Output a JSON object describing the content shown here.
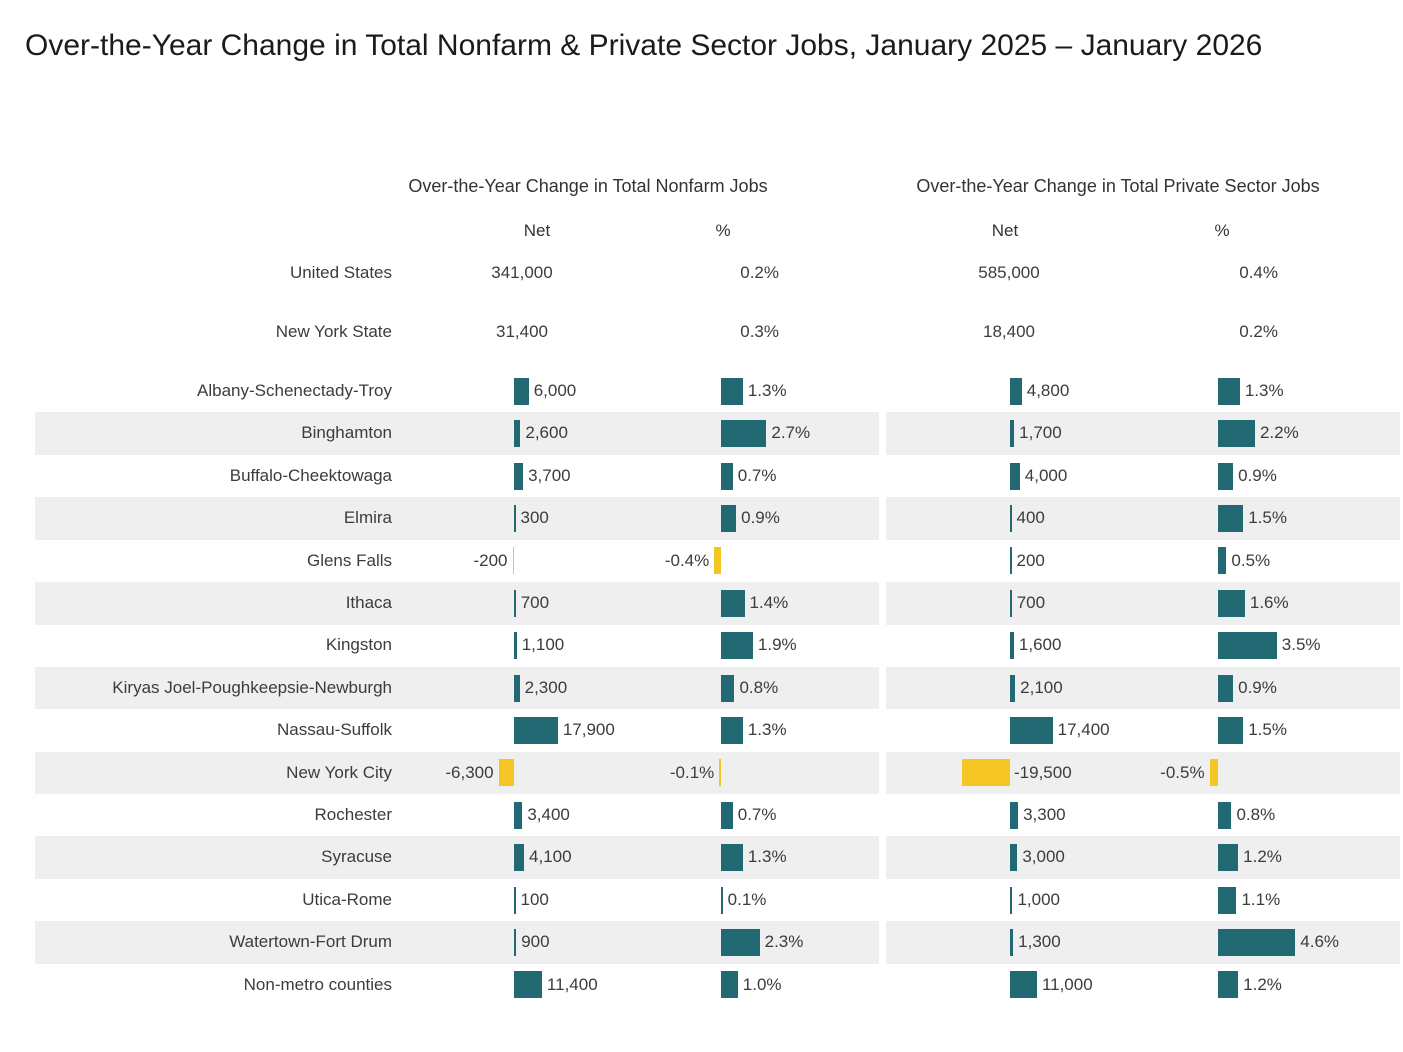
{
  "title": "Over-the-Year Change in Total Nonfarm & Private Sector Jobs, January 2025 – January 2026",
  "colors": {
    "positive_bar": "#236974",
    "negative_bar": "#F5C623",
    "row_stripe": "#EFEFEF",
    "text": "#3C3C3C"
  },
  "chart_data": {
    "type": "bar",
    "orientation": "horizontal",
    "groups": [
      {
        "label": "Over-the-Year Change in Total Nonfarm Jobs",
        "columns": [
          "Net",
          "%"
        ]
      },
      {
        "label": "Over-the-Year Change in Total Private Sector Jobs",
        "columns": [
          "Net",
          "%"
        ]
      }
    ],
    "summary_rows": [
      {
        "label": "United States",
        "nonfarm_net": "341,000",
        "nonfarm_pct": "0.2%",
        "private_net": "585,000",
        "private_pct": "0.4%"
      },
      {
        "label": "New York State",
        "nonfarm_net": "31,400",
        "nonfarm_pct": "0.3%",
        "private_net": "18,400",
        "private_pct": "0.2%"
      }
    ],
    "rows": [
      {
        "label": "Albany-Schenectady-Troy",
        "nonfarm_net": 6000,
        "nonfarm_pct": 1.3,
        "private_net": 4800,
        "private_pct": 1.3
      },
      {
        "label": "Binghamton",
        "nonfarm_net": 2600,
        "nonfarm_pct": 2.7,
        "private_net": 1700,
        "private_pct": 2.2
      },
      {
        "label": "Buffalo-Cheektowaga",
        "nonfarm_net": 3700,
        "nonfarm_pct": 0.7,
        "private_net": 4000,
        "private_pct": 0.9
      },
      {
        "label": "Elmira",
        "nonfarm_net": 300,
        "nonfarm_pct": 0.9,
        "private_net": 400,
        "private_pct": 1.5
      },
      {
        "label": "Glens Falls",
        "nonfarm_net": -200,
        "nonfarm_pct": -0.4,
        "private_net": 200,
        "private_pct": 0.5
      },
      {
        "label": "Ithaca",
        "nonfarm_net": 700,
        "nonfarm_pct": 1.4,
        "private_net": 700,
        "private_pct": 1.6
      },
      {
        "label": "Kingston",
        "nonfarm_net": 1100,
        "nonfarm_pct": 1.9,
        "private_net": 1600,
        "private_pct": 3.5
      },
      {
        "label": "Kiryas Joel-Poughkeepsie-Newburgh",
        "nonfarm_net": 2300,
        "nonfarm_pct": 0.8,
        "private_net": 2100,
        "private_pct": 0.9
      },
      {
        "label": "Nassau-Suffolk",
        "nonfarm_net": 17900,
        "nonfarm_pct": 1.3,
        "private_net": 17400,
        "private_pct": 1.5
      },
      {
        "label": "New York City",
        "nonfarm_net": -6300,
        "nonfarm_pct": -0.1,
        "private_net": -19500,
        "private_pct": -0.5,
        "net_label_side": "right"
      },
      {
        "label": "Rochester",
        "nonfarm_net": 3400,
        "nonfarm_pct": 0.7,
        "private_net": 3300,
        "private_pct": 0.8
      },
      {
        "label": "Syracuse",
        "nonfarm_net": 4100,
        "nonfarm_pct": 1.3,
        "private_net": 3000,
        "private_pct": 1.2
      },
      {
        "label": "Utica-Rome",
        "nonfarm_net": 100,
        "nonfarm_pct": 0.1,
        "private_net": 1000,
        "private_pct": 1.1
      },
      {
        "label": "Watertown-Fort Drum",
        "nonfarm_net": 900,
        "nonfarm_pct": 2.3,
        "private_net": 1300,
        "private_pct": 4.6
      },
      {
        "label": "Non-metro counties",
        "nonfarm_net": 11400,
        "nonfarm_pct": 1.0,
        "private_net": 11000,
        "private_pct": 1.2
      }
    ]
  }
}
